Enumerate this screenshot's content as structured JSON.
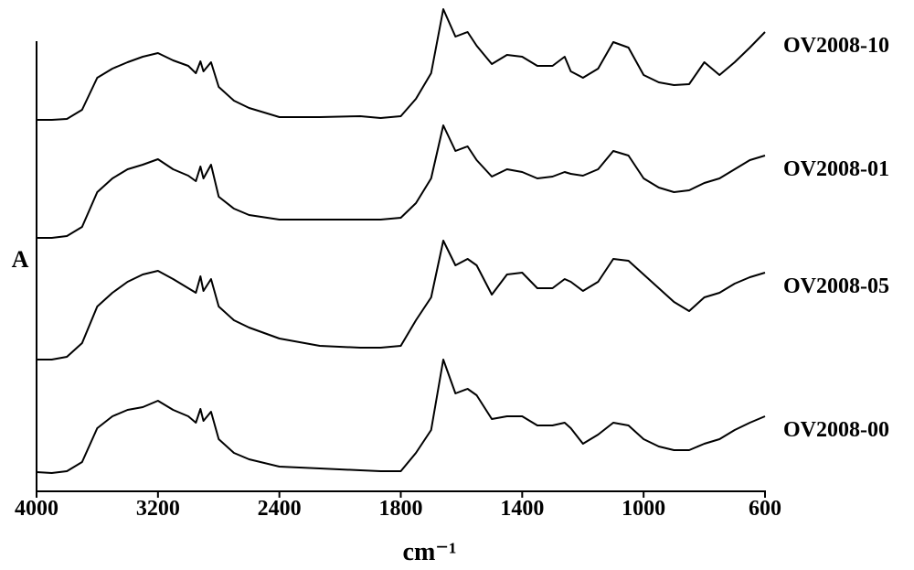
{
  "chart_data": {
    "type": "line",
    "x_label": "cm⁻¹",
    "y_label": "A",
    "x": [
      4000,
      3900,
      3800,
      3700,
      3600,
      3500,
      3400,
      3300,
      3200,
      3100,
      3000,
      2950,
      2920,
      2900,
      2850,
      2800,
      2700,
      2600,
      2400,
      2200,
      2000,
      1900,
      1800,
      1750,
      1700,
      1660,
      1620,
      1580,
      1550,
      1500,
      1450,
      1400,
      1350,
      1300,
      1260,
      1240,
      1200,
      1150,
      1100,
      1050,
      1000,
      950,
      900,
      850,
      800,
      750,
      700,
      650,
      600
    ],
    "xlim": [
      4000,
      600
    ],
    "xticks": [
      4000,
      3200,
      2400,
      1800,
      1400,
      1000,
      600
    ],
    "ylim": [
      0,
      540
    ],
    "series": [
      {
        "name": "OV2008-10",
        "color": "#000000",
        "values": [
          406,
          406,
          407,
          417,
          452,
          462,
          469,
          475,
          479,
          471,
          465,
          457,
          470,
          459,
          469,
          442,
          427,
          419,
          409,
          409,
          410,
          408,
          410,
          429,
          457,
          527,
          497,
          502,
          487,
          467,
          477,
          475,
          465,
          465,
          475,
          459,
          452,
          462,
          491,
          485,
          455,
          447,
          444,
          445,
          469,
          455,
          469,
          485,
          502
        ]
      },
      {
        "name": "OV2008-01",
        "color": "#000000",
        "values": [
          277,
          277,
          279,
          289,
          327,
          342,
          352,
          357,
          363,
          352,
          345,
          339,
          355,
          342,
          357,
          322,
          309,
          302,
          297,
          297,
          297,
          297,
          299,
          315,
          342,
          400,
          372,
          377,
          362,
          344,
          352,
          349,
          342,
          344,
          349,
          347,
          345,
          352,
          372,
          367,
          342,
          332,
          327,
          329,
          337,
          342,
          352,
          362,
          367
        ]
      },
      {
        "name": "OV2008-05",
        "color": "#000000",
        "values": [
          144,
          144,
          147,
          162,
          202,
          217,
          229,
          237,
          241,
          232,
          222,
          217,
          235,
          219,
          232,
          202,
          187,
          179,
          167,
          159,
          157,
          157,
          159,
          187,
          212,
          274,
          247,
          254,
          247,
          215,
          237,
          239,
          222,
          222,
          232,
          229,
          219,
          229,
          254,
          252,
          237,
          222,
          207,
          197,
          212,
          217,
          227,
          234,
          239
        ]
      },
      {
        "name": "OV2008-00",
        "color": "#000000",
        "values": [
          21,
          20,
          22,
          32,
          69,
          82,
          89,
          92,
          99,
          89,
          82,
          75,
          90,
          77,
          87,
          57,
          42,
          35,
          27,
          25,
          23,
          22,
          22,
          42,
          67,
          144,
          107,
          112,
          105,
          79,
          82,
          82,
          72,
          72,
          75,
          69,
          52,
          62,
          75,
          72,
          57,
          49,
          45,
          45,
          52,
          57,
          67,
          75,
          82
        ]
      }
    ]
  }
}
